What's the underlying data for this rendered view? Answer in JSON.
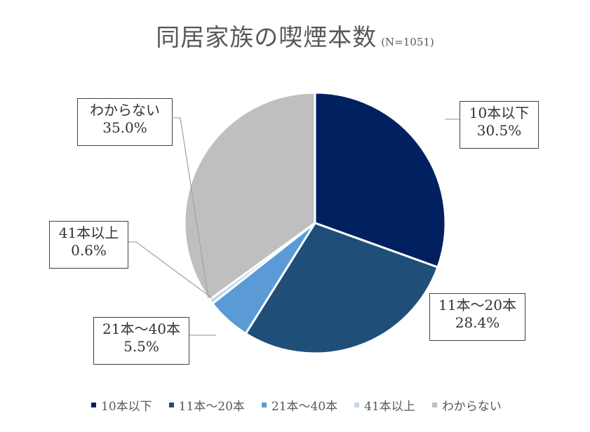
{
  "chart_data": {
    "type": "pie",
    "title": "同居家族の喫煙本数",
    "subtitle": "(N=1051)",
    "categories": [
      "10本以下",
      "11本～20本",
      "21本～40本",
      "41本以上",
      "わからない"
    ],
    "values": [
      30.5,
      28.4,
      5.5,
      0.6,
      35.0
    ],
    "value_labels": [
      "30.5%",
      "28.4%",
      "5.5%",
      "0.6%",
      "35.0%"
    ],
    "colors": [
      "#002060",
      "#1F4E79",
      "#5B9BD5",
      "#BDD7EE",
      "#BFBFBF"
    ],
    "legend_position": "bottom"
  }
}
